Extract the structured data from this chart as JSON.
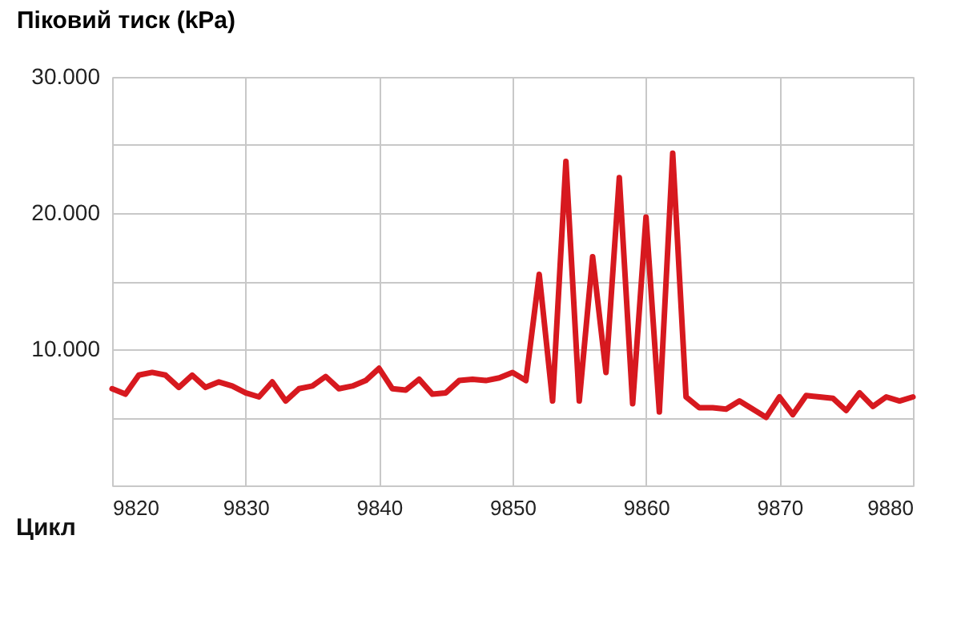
{
  "chart_data": {
    "type": "line",
    "xlabel": "Цикл",
    "ylabel": "Піковий тиск (kPa)",
    "x": [
      9820,
      9821,
      9822,
      9823,
      9824,
      9825,
      9826,
      9827,
      9828,
      9829,
      9830,
      9831,
      9832,
      9833,
      9834,
      9835,
      9836,
      9837,
      9838,
      9839,
      9840,
      9841,
      9842,
      9843,
      9844,
      9845,
      9846,
      9847,
      9848,
      9849,
      9850,
      9851,
      9852,
      9853,
      9854,
      9855,
      9856,
      9857,
      9858,
      9859,
      9860,
      9861,
      9862,
      9863,
      9864,
      9865,
      9866,
      9867,
      9868,
      9869,
      9870,
      9871,
      9872,
      9873,
      9874,
      9875,
      9876,
      9877,
      9878,
      9879,
      9880
    ],
    "series": [
      {
        "color": "#d7191f",
        "values": [
          7100,
          6700,
          8100,
          8300,
          8100,
          7200,
          8100,
          7200,
          7600,
          7300,
          6800,
          6500,
          7600,
          6200,
          7100,
          7300,
          8000,
          7100,
          7300,
          7700,
          8600,
          7100,
          7000,
          7800,
          6700,
          6800,
          7700,
          7800,
          7700,
          7900,
          8300,
          7700,
          15500,
          6200,
          23800,
          6200,
          16800,
          8300,
          22600,
          6000,
          19700,
          5400,
          24400,
          6500,
          5700,
          5700,
          5600,
          6200,
          5600,
          5000,
          6500,
          5200,
          6600,
          6500,
          6400,
          5500,
          6800,
          5800,
          6500,
          6200,
          6500
        ]
      }
    ],
    "xlim": [
      9820,
      9880
    ],
    "xticks": [
      9820,
      9830,
      9840,
      9850,
      9860,
      9870,
      9880
    ],
    "ylim": [
      0,
      30000
    ],
    "yticks": [
      {
        "value": 0,
        "label": null
      },
      {
        "value": 5000,
        "label": null
      },
      {
        "value": 10000,
        "label": "10.000"
      },
      {
        "value": 15000,
        "label": null
      },
      {
        "value": 20000,
        "label": "20.000"
      },
      {
        "value": 25000,
        "label": null
      },
      {
        "value": 30000,
        "label": "30.000"
      }
    ],
    "grid": true,
    "marker": "none",
    "line_style": "solid"
  }
}
